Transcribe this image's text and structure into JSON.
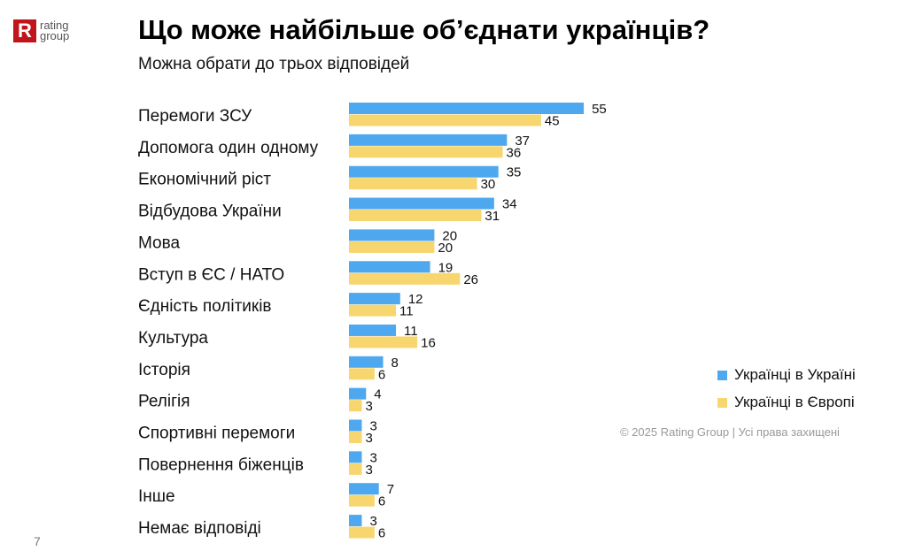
{
  "logo": {
    "text": "rating group",
    "mark": "R"
  },
  "title": "Що може найбільше об’єднати українців?",
  "subtitle": "Можна обрати до трьох відповідей",
  "colors": {
    "ukraine": "#4ea8f0",
    "europe": "#f8d66f"
  },
  "chart_data": {
    "type": "bar",
    "orientation": "horizontal",
    "title": "Що може найбільше об’єднати українців?",
    "categories": [
      "Перемоги ЗСУ",
      "Допомога один одному",
      "Економічний ріст",
      "Відбудова України",
      "Мова",
      "Вступ в ЄС / НАТО",
      "Єдність політиків",
      "Культура",
      "Історія",
      "Релігія",
      "Спортивні перемоги",
      "Повернення біженців",
      "Інше",
      "Немає відповіді"
    ],
    "series": [
      {
        "name": "Українці в Україні",
        "values": [
          55,
          37,
          35,
          34,
          20,
          19,
          12,
          11,
          8,
          4,
          3,
          3,
          7,
          3
        ]
      },
      {
        "name": "Українці в Європі",
        "values": [
          45,
          36,
          30,
          31,
          20,
          26,
          11,
          16,
          6,
          3,
          3,
          3,
          6,
          6
        ]
      }
    ],
    "legend": "right"
  },
  "footer": {
    "copyright": "© 2025 Rating Group | Усі права захищені",
    "page": "7"
  }
}
